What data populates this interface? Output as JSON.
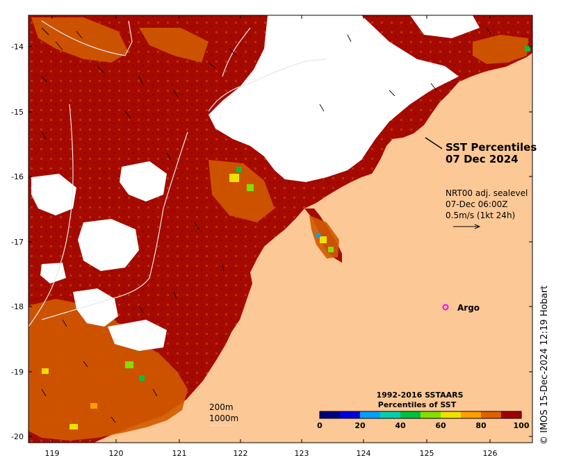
{
  "title": {
    "line1": "SST Percentiles",
    "line2": "07 Dec 2024"
  },
  "currents": {
    "source": "NRT00 adj. sealevel",
    "time": "07-Dec 06:00Z",
    "scale": "0.5m/s (1kt 24h)"
  },
  "argo": {
    "label": "Argo",
    "marker": "o",
    "color": "#ff00ff"
  },
  "isobaths": {
    "shallow": "200m",
    "deep": "1000m"
  },
  "colorbar": {
    "title1": "1992-2016 SSTAARS",
    "title2": "Percentiles of SST",
    "ticks": [
      "0",
      "20",
      "40",
      "60",
      "80",
      "100"
    ],
    "colors": [
      "#00007f",
      "#0000e0",
      "#00a0ff",
      "#00d0b0",
      "#00c040",
      "#80e000",
      "#f0e000",
      "#ffa000",
      "#e06000",
      "#a00000"
    ]
  },
  "axes": {
    "lon_labels": [
      "119",
      "120",
      "121",
      "122",
      "123",
      "124",
      "125",
      "126"
    ],
    "lat_labels": [
      "-14",
      "-15",
      "-16",
      "-17",
      "-18",
      "-19",
      "-20"
    ]
  },
  "credit": "© IMOS 15-Dec-2024 12:19 Hobart",
  "colors": {
    "land": "#fcc896",
    "sst_high": "#a00000",
    "sst_mid": "#d05a00",
    "cloud": "#ffffff"
  }
}
